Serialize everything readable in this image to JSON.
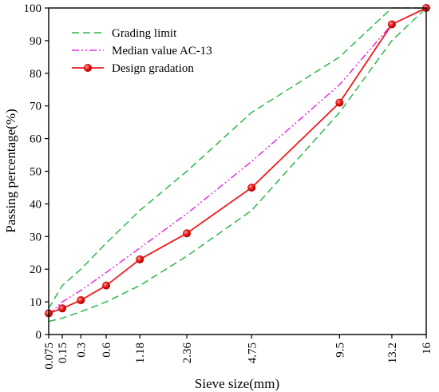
{
  "chart_data": {
    "type": "line",
    "xlabel": "Sieve size(mm)",
    "ylabel": "Passing percentage(%)",
    "ylim": [
      0,
      100
    ],
    "yticks": [
      0,
      10,
      20,
      30,
      40,
      50,
      60,
      70,
      80,
      90,
      100
    ],
    "x_scale": "power-0.45",
    "categories": [
      "0.075",
      "0.15",
      "0.3",
      "0.6",
      "1.18",
      "2.36",
      "4.75",
      "9.5",
      "13.2",
      "16"
    ],
    "x": [
      0.075,
      0.15,
      0.3,
      0.6,
      1.18,
      2.36,
      4.75,
      9.5,
      13.2,
      16
    ],
    "legend_position": "top-left",
    "series": [
      {
        "name": "Grading limit",
        "style": "dashed",
        "color": "#2db84d",
        "values": [
          8,
          15,
          20,
          28,
          38,
          50,
          68,
          85,
          100,
          100
        ]
      },
      {
        "name": "",
        "style": "dashed",
        "color": "#2db84d",
        "values": [
          4,
          5,
          7,
          10,
          15,
          24,
          38,
          68,
          90,
          100
        ]
      },
      {
        "name": "Median value AC-13",
        "style": "dashdotdot",
        "color": "#e62ee6",
        "values": [
          6,
          10,
          13.5,
          19,
          26.5,
          37,
          53,
          76.5,
          95,
          100
        ]
      },
      {
        "name": "Design gradation",
        "style": "solid-marker",
        "color": "#ee1c1c",
        "values": [
          6.5,
          8,
          10.5,
          15,
          23,
          31,
          45,
          71,
          95,
          100
        ]
      }
    ]
  }
}
